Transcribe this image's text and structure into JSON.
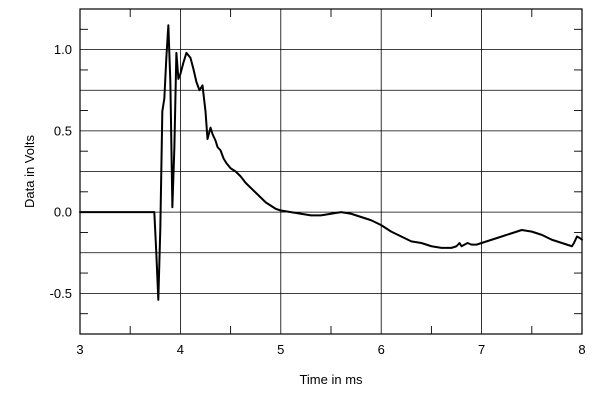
{
  "chart_data": {
    "type": "line",
    "title": "",
    "xlabel": "Time in ms",
    "ylabel": "Data in Volts",
    "xlim": [
      3,
      8
    ],
    "ylim": [
      -0.75,
      1.25
    ],
    "grid": true,
    "x_ticks": [
      3,
      4,
      5,
      6,
      7,
      8
    ],
    "x_tick_labels": [
      "3",
      "4",
      "5",
      "6",
      "7",
      "8"
    ],
    "y_ticks": [
      -0.5,
      0.0,
      0.5,
      1.0
    ],
    "y_tick_labels": [
      "-0.5",
      "0.0",
      "0.5",
      "1.0"
    ],
    "series": [
      {
        "color": "#000000",
        "x": [
          3.0,
          3.5,
          3.74,
          3.76,
          3.78,
          3.8,
          3.82,
          3.84,
          3.86,
          3.88,
          3.9,
          3.92,
          3.94,
          3.96,
          3.98,
          4.0,
          4.03,
          4.06,
          4.1,
          4.13,
          4.16,
          4.19,
          4.22,
          4.25,
          4.27,
          4.3,
          4.32,
          4.35,
          4.37,
          4.4,
          4.43,
          4.46,
          4.5,
          4.55,
          4.6,
          4.65,
          4.7,
          4.75,
          4.8,
          4.85,
          4.9,
          4.95,
          5.0,
          5.1,
          5.2,
          5.3,
          5.4,
          5.5,
          5.6,
          5.7,
          5.8,
          5.9,
          6.0,
          6.1,
          6.2,
          6.3,
          6.4,
          6.5,
          6.6,
          6.7,
          6.75,
          6.78,
          6.8,
          6.83,
          6.86,
          6.9,
          6.95,
          7.0,
          7.05,
          7.1,
          7.2,
          7.3,
          7.4,
          7.5,
          7.6,
          7.7,
          7.8,
          7.9,
          7.92,
          7.95,
          7.98,
          8.0
        ],
        "y": [
          0.0,
          0.0,
          0.0,
          -0.25,
          -0.54,
          -0.1,
          0.62,
          0.7,
          0.95,
          1.15,
          0.8,
          0.03,
          0.4,
          0.98,
          0.82,
          0.85,
          0.92,
          0.98,
          0.95,
          0.88,
          0.8,
          0.75,
          0.78,
          0.62,
          0.45,
          0.52,
          0.48,
          0.44,
          0.4,
          0.38,
          0.33,
          0.3,
          0.27,
          0.25,
          0.22,
          0.18,
          0.15,
          0.12,
          0.09,
          0.06,
          0.04,
          0.02,
          0.01,
          0.0,
          -0.01,
          -0.02,
          -0.02,
          -0.01,
          0.0,
          -0.01,
          -0.03,
          -0.05,
          -0.08,
          -0.12,
          -0.15,
          -0.18,
          -0.19,
          -0.21,
          -0.22,
          -0.22,
          -0.21,
          -0.19,
          -0.21,
          -0.2,
          -0.19,
          -0.2,
          -0.2,
          -0.19,
          -0.18,
          -0.17,
          -0.15,
          -0.13,
          -0.11,
          -0.12,
          -0.14,
          -0.17,
          -0.19,
          -0.21,
          -0.19,
          -0.15,
          -0.16,
          -0.17
        ]
      }
    ]
  }
}
